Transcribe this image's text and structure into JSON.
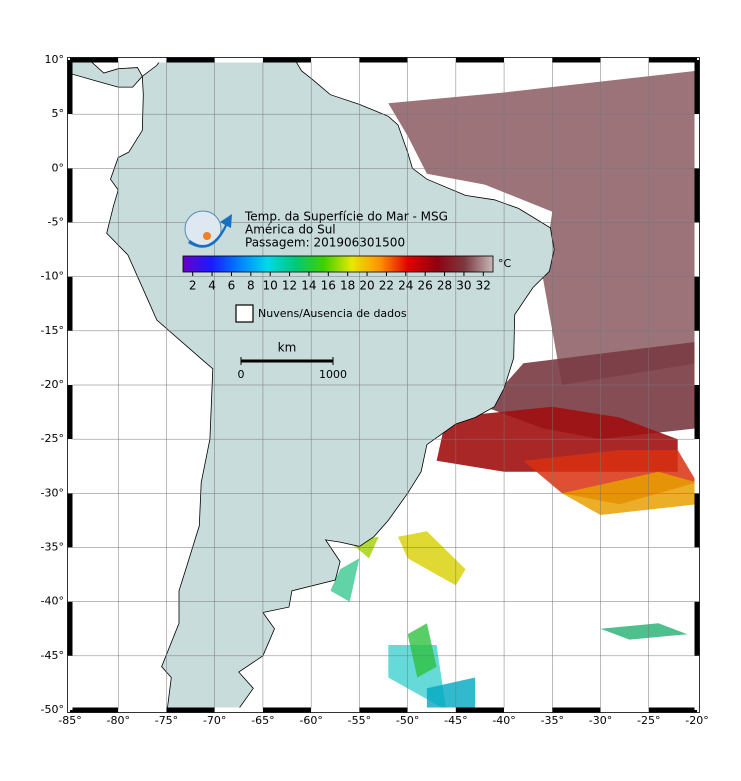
{
  "map": {
    "title": "Temp. da Superfície do Mar - MSG",
    "region": "América do Sul",
    "pass": "Passagem: 201906301500",
    "lonlim": [
      -85,
      -20
    ],
    "latlim": [
      10,
      -50
    ],
    "xticks": [
      {
        "value": -85,
        "label": "-85°"
      },
      {
        "value": -80,
        "label": "-80°"
      },
      {
        "value": -75,
        "label": "-75°"
      },
      {
        "value": -70,
        "label": "-70°"
      },
      {
        "value": -65,
        "label": "-65°"
      },
      {
        "value": -60,
        "label": "-60°"
      },
      {
        "value": -55,
        "label": "-55°"
      },
      {
        "value": -50,
        "label": "-50°"
      },
      {
        "value": -45,
        "label": "-45°"
      },
      {
        "value": -40,
        "label": "-40°"
      },
      {
        "value": -35,
        "label": "-35°"
      },
      {
        "value": -30,
        "label": "-30°"
      },
      {
        "value": -25,
        "label": "-25°"
      },
      {
        "value": -20,
        "label": "-20°"
      }
    ],
    "yticks": [
      {
        "value": 10,
        "label": "10°"
      },
      {
        "value": 5,
        "label": "5°"
      },
      {
        "value": 0,
        "label": "0°"
      },
      {
        "value": -5,
        "label": "-5°"
      },
      {
        "value": -10,
        "label": "-10°"
      },
      {
        "value": -15,
        "label": "-15°"
      },
      {
        "value": -20,
        "label": "-20°"
      },
      {
        "value": -25,
        "label": "-25°"
      },
      {
        "value": -30,
        "label": "-30°"
      },
      {
        "value": -35,
        "label": "-35°"
      },
      {
        "value": -40,
        "label": "-40°"
      },
      {
        "value": -45,
        "label": "-45°"
      },
      {
        "value": -50,
        "label": "-50°"
      }
    ],
    "grid": true,
    "colorbar": {
      "range": [
        1,
        33
      ],
      "ticks": [
        2,
        4,
        6,
        8,
        10,
        12,
        14,
        16,
        18,
        20,
        22,
        24,
        26,
        28,
        30,
        32
      ],
      "unit": "°C",
      "colors": [
        "#6a00c8",
        "#1a1aff",
        "#0080ff",
        "#00d8e8",
        "#00c878",
        "#40d000",
        "#e8e800",
        "#ff9000",
        "#e00000",
        "#900010",
        "#7a3a40",
        "#c8b8b8"
      ]
    },
    "legend": "Nuvens/Ausencia de dados",
    "scalebar": {
      "unit": "km",
      "ticks": [
        0,
        1000
      ]
    }
  }
}
